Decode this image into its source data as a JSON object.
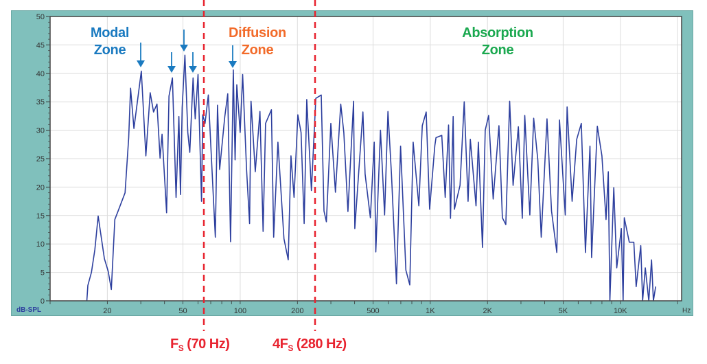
{
  "chart_data": {
    "type": "line",
    "xlabel": "Hz",
    "ylabel": "dB-SPL",
    "xscale": "log",
    "xlim": [
      10,
      21000
    ],
    "ylim": [
      0,
      50
    ],
    "grid": true,
    "line_color": "#2d3f9e",
    "yticks": [
      0,
      5,
      10,
      15,
      20,
      25,
      30,
      35,
      40,
      45,
      50
    ],
    "xticks": [
      {
        "value": 20,
        "label": "20"
      },
      {
        "value": 50,
        "label": "50"
      },
      {
        "value": 100,
        "label": "100"
      },
      {
        "value": 200,
        "label": "200"
      },
      {
        "value": 500,
        "label": "500"
      },
      {
        "value": 1000,
        "label": "1K"
      },
      {
        "value": 2000,
        "label": "2K"
      },
      {
        "value": 5000,
        "label": "5K"
      },
      {
        "value": 10000,
        "label": "10K"
      }
    ],
    "points": [
      [
        15.6,
        0
      ],
      [
        15.8,
        2.7
      ],
      [
        16.5,
        5
      ],
      [
        17.2,
        9
      ],
      [
        17.9,
        14.9
      ],
      [
        19.3,
        7.4
      ],
      [
        20.2,
        5.2
      ],
      [
        21,
        2
      ],
      [
        21.9,
        14.3
      ],
      [
        22.8,
        15.8
      ],
      [
        24.8,
        19
      ],
      [
        25.9,
        28.7
      ],
      [
        26.5,
        37.4
      ],
      [
        27.6,
        30.3
      ],
      [
        30.2,
        40.4
      ],
      [
        31.9,
        25.5
      ],
      [
        33.6,
        36.6
      ],
      [
        35,
        33.2
      ],
      [
        36.5,
        34.6
      ],
      [
        37.9,
        25.1
      ],
      [
        38.8,
        29.3
      ],
      [
        41,
        15.5
      ],
      [
        42.2,
        36
      ],
      [
        44,
        39.2
      ],
      [
        46,
        18.2
      ],
      [
        47.6,
        32.4
      ],
      [
        48.5,
        18.7
      ],
      [
        49.5,
        34
      ],
      [
        51.2,
        43.2
      ],
      [
        53,
        29.6
      ],
      [
        54.3,
        26.1
      ],
      [
        56.5,
        39.2
      ],
      [
        58,
        32
      ],
      [
        60,
        39.8
      ],
      [
        62.6,
        17.5
      ],
      [
        63.5,
        32.7
      ],
      [
        65.3,
        31.2
      ],
      [
        68,
        36.2
      ],
      [
        74,
        11.2
      ],
      [
        76,
        34.4
      ],
      [
        78,
        23.1
      ],
      [
        83,
        32.4
      ],
      [
        86,
        36.4
      ],
      [
        89,
        10.4
      ],
      [
        92,
        40.6
      ],
      [
        94,
        24.8
      ],
      [
        96,
        38
      ],
      [
        100,
        29.6
      ],
      [
        103,
        39.8
      ],
      [
        108,
        23.1
      ],
      [
        112,
        13.6
      ],
      [
        114,
        35.1
      ],
      [
        120,
        22.7
      ],
      [
        127,
        33.3
      ],
      [
        132,
        12.2
      ],
      [
        136,
        31.2
      ],
      [
        146,
        33.6
      ],
      [
        150,
        11.2
      ],
      [
        158,
        27.9
      ],
      [
        170,
        10.9
      ],
      [
        179,
        7.2
      ],
      [
        185,
        25.5
      ],
      [
        192,
        18.2
      ],
      [
        201,
        32.7
      ],
      [
        209,
        29.6
      ],
      [
        217,
        13.6
      ],
      [
        224,
        35.4
      ],
      [
        237,
        19.4
      ],
      [
        250,
        35.6
      ],
      [
        267,
        36.2
      ],
      [
        276,
        15.8
      ],
      [
        284,
        13.9
      ],
      [
        300,
        31.2
      ],
      [
        317,
        19.1
      ],
      [
        338,
        34.6
      ],
      [
        351,
        29.6
      ],
      [
        369,
        15.7
      ],
      [
        395,
        35.1
      ],
      [
        401,
        12.7
      ],
      [
        442,
        33.2
      ],
      [
        454,
        22.3
      ],
      [
        484,
        14.6
      ],
      [
        507,
        27.9
      ],
      [
        517,
        8.6
      ],
      [
        547,
        30
      ],
      [
        575,
        15.1
      ],
      [
        599,
        33.3
      ],
      [
        625,
        22.3
      ],
      [
        664,
        3
      ],
      [
        698,
        27.2
      ],
      [
        744,
        5.4
      ],
      [
        780,
        2.8
      ],
      [
        813,
        27.9
      ],
      [
        871,
        16.7
      ],
      [
        908,
        30.8
      ],
      [
        952,
        33.2
      ],
      [
        992,
        16.1
      ],
      [
        1057,
        27.3
      ],
      [
        1072,
        28.7
      ],
      [
        1149,
        29.1
      ],
      [
        1198,
        18.2
      ],
      [
        1248,
        30.9
      ],
      [
        1277,
        14.5
      ],
      [
        1320,
        32.4
      ],
      [
        1339,
        16.1
      ],
      [
        1434,
        20.3
      ],
      [
        1508,
        35
      ],
      [
        1581,
        17.5
      ],
      [
        1625,
        28.4
      ],
      [
        1741,
        16.7
      ],
      [
        1791,
        27.9
      ],
      [
        1882,
        9.4
      ],
      [
        1946,
        30
      ],
      [
        2028,
        32.6
      ],
      [
        2143,
        17.9
      ],
      [
        2298,
        30.8
      ],
      [
        2395,
        14.6
      ],
      [
        2497,
        13.4
      ],
      [
        2616,
        35.1
      ],
      [
        2728,
        20.3
      ],
      [
        2908,
        30.6
      ],
      [
        3048,
        14.5
      ],
      [
        3141,
        32.6
      ],
      [
        3340,
        15.1
      ],
      [
        3500,
        32.1
      ],
      [
        3678,
        24.8
      ],
      [
        3834,
        11.2
      ],
      [
        4111,
        32
      ],
      [
        4343,
        15.8
      ],
      [
        4630,
        8.5
      ],
      [
        4786,
        31.8
      ],
      [
        5129,
        15.1
      ],
      [
        5247,
        34.1
      ],
      [
        5574,
        17.5
      ],
      [
        5892,
        28.4
      ],
      [
        6230,
        31.2
      ],
      [
        6550,
        8.5
      ],
      [
        6918,
        27.2
      ],
      [
        7058,
        7.6
      ],
      [
        7563,
        30.7
      ],
      [
        7996,
        25.5
      ],
      [
        8406,
        14.3
      ],
      [
        8640,
        22.7
      ],
      [
        8807,
        0
      ],
      [
        9234,
        19.9
      ],
      [
        9570,
        5.8
      ],
      [
        10116,
        12.7
      ],
      [
        10345,
        0
      ],
      [
        10484,
        14.6
      ],
      [
        11146,
        10.3
      ],
      [
        11776,
        10.3
      ],
      [
        12114,
        2.5
      ],
      [
        12800,
        9.7
      ],
      [
        13092,
        0
      ],
      [
        13532,
        5.8
      ],
      [
        14108,
        0
      ],
      [
        14584,
        7.2
      ],
      [
        14916,
        0
      ],
      [
        15330,
        2.5
      ]
    ],
    "annotations": {
      "zones": [
        {
          "line1": "Modal",
          "line2": "Zone",
          "color": "#1a7ac0"
        },
        {
          "line1": "Diffusion",
          "line2": "Zone",
          "color": "#f26b2a"
        },
        {
          "line1": "Absorption",
          "line2": "Zone",
          "color": "#1aa84f"
        }
      ],
      "arrow_color": "#1a7ac0",
      "marker_color": "#e8232f",
      "markers": [
        {
          "prefix": "F",
          "sub": "S",
          "suffix": " (70 Hz)"
        },
        {
          "prefix": "4F",
          "sub": "S",
          "suffix": " (280 Hz)"
        }
      ]
    }
  }
}
